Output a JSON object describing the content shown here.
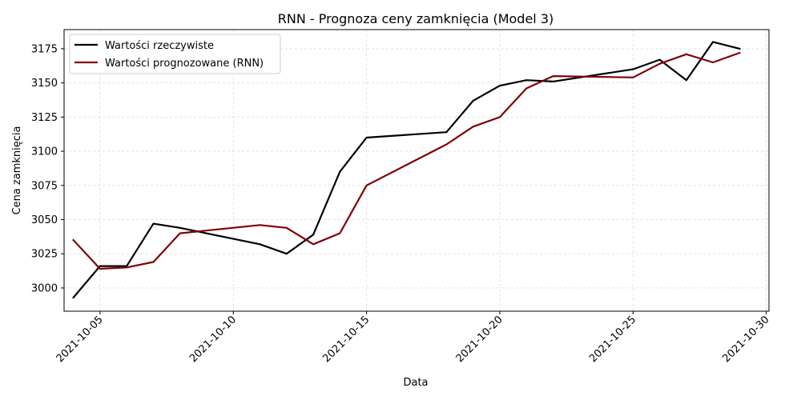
{
  "chart_data": {
    "type": "line",
    "title": "RNN - Prognoza ceny zamknięcia (Model 3)",
    "xlabel": "Data",
    "ylabel": "Cena zamknięcia",
    "xlim": [
      "2021-10-03",
      "2021-10-30"
    ],
    "ylim": [
      2983,
      3189
    ],
    "x_ticks": [
      "2021-10-05",
      "2021-10-10",
      "2021-10-15",
      "2021-10-20",
      "2021-10-25",
      "2021-10-30"
    ],
    "y_ticks": [
      3000,
      3025,
      3050,
      3075,
      3100,
      3125,
      3150,
      3175
    ],
    "grid": true,
    "legend_position": "top-left",
    "series": [
      {
        "name": "Wartości rzeczywiste",
        "color": "#000000",
        "points": [
          {
            "x": "2021-10-04",
            "y": 2993
          },
          {
            "x": "2021-10-05",
            "y": 3016
          },
          {
            "x": "2021-10-06",
            "y": 3016
          },
          {
            "x": "2021-10-07",
            "y": 3047
          },
          {
            "x": "2021-10-08",
            "y": 3044
          },
          {
            "x": "2021-10-11",
            "y": 3032
          },
          {
            "x": "2021-10-12",
            "y": 3025
          },
          {
            "x": "2021-10-13",
            "y": 3039
          },
          {
            "x": "2021-10-14",
            "y": 3085
          },
          {
            "x": "2021-10-15",
            "y": 3110
          },
          {
            "x": "2021-10-18",
            "y": 3114
          },
          {
            "x": "2021-10-19",
            "y": 3137
          },
          {
            "x": "2021-10-20",
            "y": 3148
          },
          {
            "x": "2021-10-21",
            "y": 3152
          },
          {
            "x": "2021-10-22",
            "y": 3151
          },
          {
            "x": "2021-10-25",
            "y": 3160
          },
          {
            "x": "2021-10-26",
            "y": 3167
          },
          {
            "x": "2021-10-27",
            "y": 3152
          },
          {
            "x": "2021-10-28",
            "y": 3180
          },
          {
            "x": "2021-10-29",
            "y": 3175
          }
        ]
      },
      {
        "name": "Wartości prognozowane (RNN)",
        "color": "#800000",
        "points": [
          {
            "x": "2021-10-04",
            "y": 3035
          },
          {
            "x": "2021-10-05",
            "y": 3014
          },
          {
            "x": "2021-10-06",
            "y": 3015
          },
          {
            "x": "2021-10-07",
            "y": 3019
          },
          {
            "x": "2021-10-08",
            "y": 3040
          },
          {
            "x": "2021-10-11",
            "y": 3046
          },
          {
            "x": "2021-10-12",
            "y": 3044
          },
          {
            "x": "2021-10-13",
            "y": 3032
          },
          {
            "x": "2021-10-14",
            "y": 3040
          },
          {
            "x": "2021-10-15",
            "y": 3075
          },
          {
            "x": "2021-10-18",
            "y": 3105
          },
          {
            "x": "2021-10-19",
            "y": 3118
          },
          {
            "x": "2021-10-20",
            "y": 3125
          },
          {
            "x": "2021-10-21",
            "y": 3146
          },
          {
            "x": "2021-10-22",
            "y": 3155
          },
          {
            "x": "2021-10-25",
            "y": 3154
          },
          {
            "x": "2021-10-26",
            "y": 3164
          },
          {
            "x": "2021-10-27",
            "y": 3171
          },
          {
            "x": "2021-10-28",
            "y": 3165
          },
          {
            "x": "2021-10-29",
            "y": 3172
          }
        ]
      }
    ]
  }
}
